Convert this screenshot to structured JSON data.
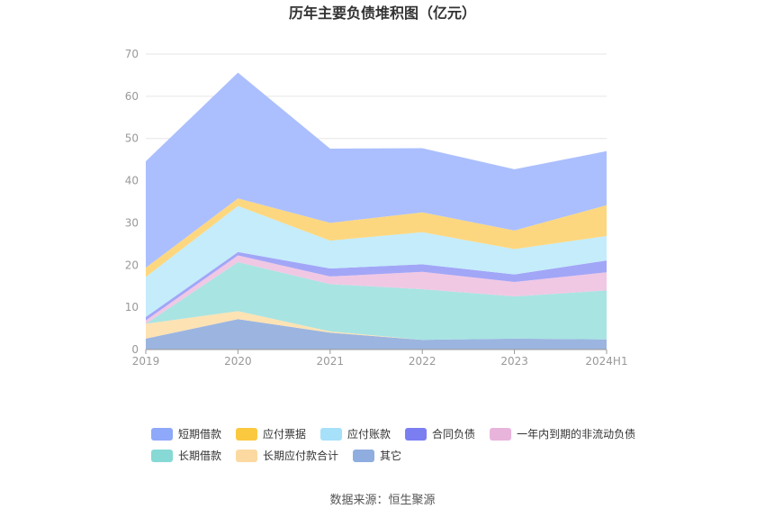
{
  "chart_data": {
    "type": "area",
    "stacked": true,
    "title": "历年主要负债堆积图（亿元）",
    "categories": [
      "2019",
      "2020",
      "2021",
      "2022",
      "2023",
      "2024H1"
    ],
    "ylim": [
      0,
      70
    ],
    "yticks": [
      0,
      10,
      20,
      30,
      40,
      50,
      60,
      70
    ],
    "grid": true,
    "legend_position": "bottom",
    "series": [
      {
        "name": "其它",
        "color": "#9bb5e0",
        "values": [
          2.6,
          7.2,
          4.0,
          2.3,
          2.6,
          2.4
        ]
      },
      {
        "name": "长期应付款合计",
        "color": "#fde2b4",
        "values": [
          3.5,
          1.9,
          0.3,
          0.0,
          0.0,
          0.0
        ]
      },
      {
        "name": "长期借款",
        "color": "#a8e4e2",
        "values": [
          0.0,
          11.6,
          11.2,
          12.0,
          10.0,
          11.6
        ]
      },
      {
        "name": "一年内到期的非流动负债",
        "color": "#f0c8e4",
        "values": [
          0.8,
          1.6,
          1.8,
          4.1,
          3.4,
          4.3
        ]
      },
      {
        "name": "合同负债",
        "color": "#a2a6f7",
        "values": [
          0.8,
          0.8,
          1.9,
          1.8,
          1.8,
          2.8
        ]
      },
      {
        "name": "应付账款",
        "color": "#c4ecfb",
        "values": [
          9.5,
          10.9,
          6.6,
          7.6,
          6.0,
          5.8
        ]
      },
      {
        "name": "应付票据",
        "color": "#fdd77f",
        "values": [
          2.2,
          1.8,
          4.2,
          4.7,
          4.4,
          7.3
        ]
      },
      {
        "name": "短期借款",
        "color": "#abbffe",
        "values": [
          25.2,
          29.8,
          17.6,
          15.2,
          14.5,
          12.8
        ]
      }
    ],
    "legend": [
      {
        "name": "短期借款",
        "color": "#8ea8fa"
      },
      {
        "name": "应付票据",
        "color": "#fbc940"
      },
      {
        "name": "应付账款",
        "color": "#a7e0f9"
      },
      {
        "name": "合同负债",
        "color": "#7b7ef1"
      },
      {
        "name": "一年内到期的非流动负债",
        "color": "#e8b4dc"
      },
      {
        "name": "长期借款",
        "color": "#86d9d5"
      },
      {
        "name": "长期应付款合计",
        "color": "#fcd9a0"
      },
      {
        "name": "其它",
        "color": "#8fadde"
      }
    ],
    "source": "数据来源：恒生聚源"
  }
}
